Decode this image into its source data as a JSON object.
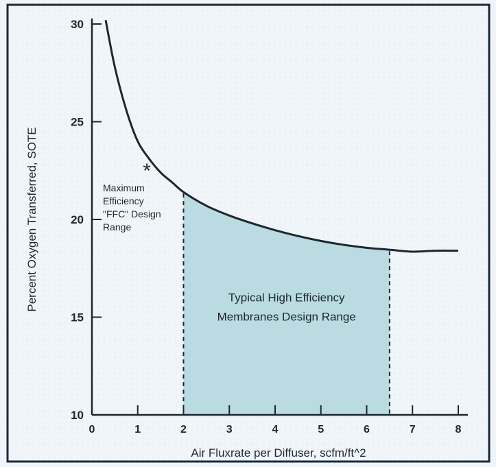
{
  "chart_data": {
    "type": "area",
    "xlabel": "Air Fluxrate per Diffuser, scfm/ft^2",
    "ylabel": "Percent Oxygen Transferred, SOTE",
    "xlim": [
      0,
      8
    ],
    "ylim": [
      10,
      30
    ],
    "x_ticks": [
      0,
      1,
      2,
      3,
      4,
      5,
      6,
      7,
      8
    ],
    "y_ticks": [
      10,
      15,
      20,
      25,
      30
    ],
    "grid": false,
    "series": [
      {
        "x": [
          0.3,
          0.5,
          0.75,
          1.0,
          1.25,
          1.5,
          1.75,
          2.0,
          2.5,
          3.0,
          3.5,
          4.0,
          4.5,
          5.0,
          5.5,
          6.0,
          6.5,
          7.0,
          7.5,
          8.0
        ],
        "y": [
          30.2,
          27.8,
          25.6,
          24.0,
          23.1,
          22.4,
          21.9,
          21.4,
          20.7,
          20.2,
          19.8,
          19.45,
          19.15,
          18.9,
          18.7,
          18.55,
          18.45,
          18.35,
          18.4,
          18.4
        ]
      }
    ],
    "shaded_region": {
      "x_start": 2.0,
      "x_end": 6.5,
      "label_lines": [
        "Typical High Efficiency",
        "Membranes Design Range"
      ]
    },
    "annotation": {
      "marker": "*",
      "marker_x": 1.2,
      "marker_y": 22.5,
      "label_lines": [
        "Maximum",
        "Efficiency",
        "\"FFC\" Design",
        "Range"
      ]
    },
    "colors": {
      "background": "#eef4f8",
      "frame": "#1a2a3a",
      "curve": "#1e2630",
      "fill": "#b9dbe1",
      "axis": "#1e2630"
    }
  }
}
